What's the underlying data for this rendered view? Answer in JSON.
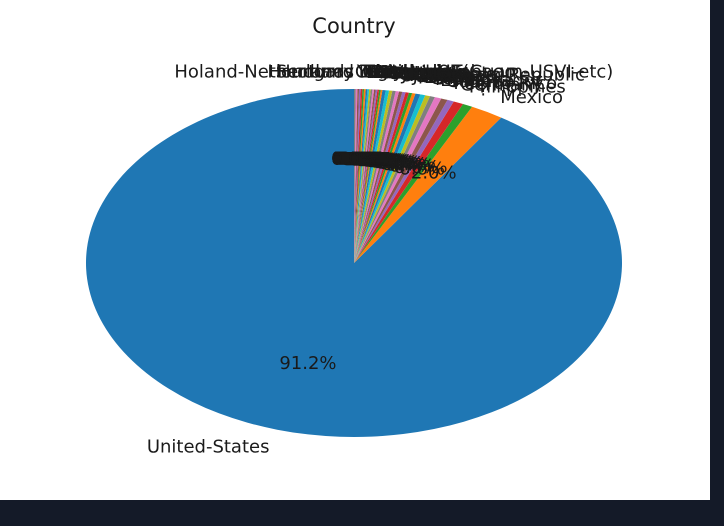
{
  "chart_data": {
    "type": "pie",
    "title": "Country",
    "slices": [
      {
        "label": "United-States",
        "percent": 91.2,
        "pct_label": "91.2%"
      },
      {
        "label": "Mexico",
        "percent": 2.0,
        "pct_label": "2.0%"
      },
      {
        "label": "?",
        "percent": 0.6,
        "pct_label": "0.6%"
      },
      {
        "label": "Philippines",
        "percent": 0.6,
        "pct_label": "0.6%"
      },
      {
        "label": "Germany",
        "percent": 0.4,
        "pct_label": "0.4%"
      },
      {
        "label": "Puerto-Rico",
        "percent": 0.4,
        "pct_label": "0.4%"
      },
      {
        "label": "Canada",
        "percent": 0.4,
        "pct_label": "0.4%"
      },
      {
        "label": "El-Salvador",
        "percent": 0.3,
        "pct_label": "0.3%"
      },
      {
        "label": "India",
        "percent": 0.3,
        "pct_label": "0.3%"
      },
      {
        "label": "Cuba",
        "percent": 0.3,
        "pct_label": "0.3%"
      },
      {
        "label": "England",
        "percent": 0.3,
        "pct_label": "0.3%"
      },
      {
        "label": "China",
        "percent": 0.2,
        "pct_label": "0.2%"
      },
      {
        "label": "South",
        "percent": 0.2,
        "pct_label": "0.2%"
      },
      {
        "label": "Jamaica",
        "percent": 0.2,
        "pct_label": "0.2%"
      },
      {
        "label": "Italy",
        "percent": 0.2,
        "pct_label": "0.2%"
      },
      {
        "label": "Dominican-Republic",
        "percent": 0.2,
        "pct_label": "0.2%"
      },
      {
        "label": "Japan",
        "percent": 0.2,
        "pct_label": "0.2%"
      },
      {
        "label": "Guatemala",
        "percent": 0.2,
        "pct_label": "0.2%"
      },
      {
        "label": "Poland",
        "percent": 0.2,
        "pct_label": "0.2%"
      },
      {
        "label": "Vietnam",
        "percent": 0.2,
        "pct_label": "0.2%"
      },
      {
        "label": "Columbia",
        "percent": 0.2,
        "pct_label": "0.2%"
      },
      {
        "label": "Haiti",
        "percent": 0.1,
        "pct_label": "0.1%"
      },
      {
        "label": "Portugal",
        "percent": 0.1,
        "pct_label": "0.1%"
      },
      {
        "label": "Taiwan",
        "percent": 0.1,
        "pct_label": "0.1%"
      },
      {
        "label": "Iran",
        "percent": 0.1,
        "pct_label": "0.1%"
      },
      {
        "label": "Greece",
        "percent": 0.1,
        "pct_label": "0.1%"
      },
      {
        "label": "Nicaragua",
        "percent": 0.1,
        "pct_label": "0.1%"
      },
      {
        "label": "Peru",
        "percent": 0.1,
        "pct_label": "0.1%"
      },
      {
        "label": "Ecuador",
        "percent": 0.1,
        "pct_label": "0.1%"
      },
      {
        "label": "France",
        "percent": 0.1,
        "pct_label": "0.1%"
      },
      {
        "label": "Ireland",
        "percent": 0.1,
        "pct_label": "0.1%"
      },
      {
        "label": "Hong",
        "percent": 0.1,
        "pct_label": "0.1%"
      },
      {
        "label": "Thailand",
        "percent": 0.1,
        "pct_label": "0.1%"
      },
      {
        "label": "Cambodia",
        "percent": 0.1,
        "pct_label": "0.1%"
      },
      {
        "label": "Trinadad&Tobago",
        "percent": 0.1,
        "pct_label": "0.1%"
      },
      {
        "label": "Laos",
        "percent": 0.1,
        "pct_label": "0.1%"
      },
      {
        "label": "Yugoslavia",
        "percent": 0.1,
        "pct_label": "0.1%"
      },
      {
        "label": "Outlying-US(Guam-USVI-etc)",
        "percent": 0.1,
        "pct_label": "0.1%"
      },
      {
        "label": "Scotland",
        "percent": 0.0,
        "pct_label": "0.0%"
      },
      {
        "label": "Honduras",
        "percent": 0.0,
        "pct_label": "0.0%"
      },
      {
        "label": "Hungary",
        "percent": 0.0,
        "pct_label": "0.0%"
      },
      {
        "label": "Holand-Netherlands",
        "percent": 0.0,
        "pct_label": "0.0%"
      }
    ],
    "colors": [
      "#1f77b4",
      "#ff7f0e",
      "#2ca02c",
      "#d62728",
      "#9467bd",
      "#8c564b",
      "#e377c2",
      "#7f7f7f",
      "#bcbd22",
      "#17becf"
    ],
    "start_angle_deg": 90,
    "direction": "counterclockwise",
    "legend": "none"
  }
}
